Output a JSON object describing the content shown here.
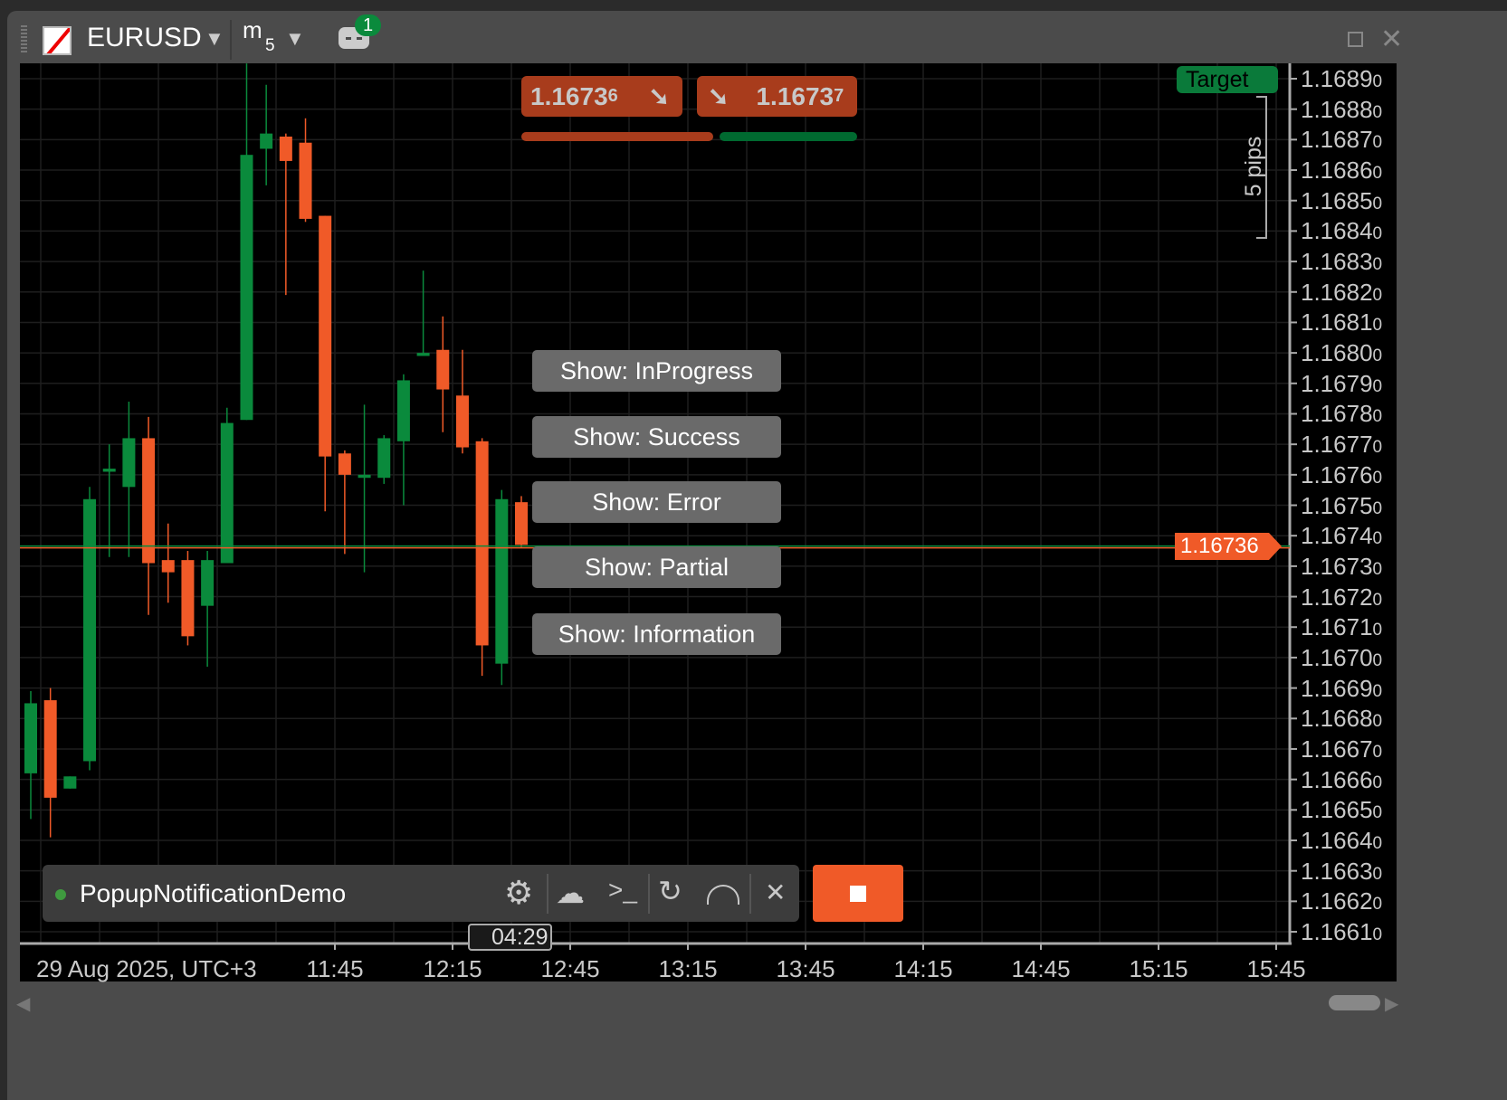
{
  "header": {
    "symbol": "EURUSD",
    "timeframe_letter": "m",
    "timeframe_number": "5",
    "bot_badge_count": "1"
  },
  "quotes": {
    "sell": {
      "main": "1.1673",
      "pip": "6"
    },
    "buy": {
      "main": "1.1673",
      "pip": "7"
    }
  },
  "target_label": "Target",
  "pips_label": "5 pips",
  "current_price": "1.16736",
  "buttons": [
    "Show: InProgress",
    "Show: Success",
    "Show: Error",
    "Show: Partial",
    "Show: Information"
  ],
  "bot": {
    "name": "PopupNotificationDemo",
    "status": "running",
    "timer": "04:29"
  },
  "colors": {
    "bull": "#0a8a3c",
    "bear": "#f05a28",
    "bg": "#000000",
    "grid": "#1e1e1e",
    "quote_box": "#a83c1c"
  },
  "chart_data": {
    "type": "candlestick",
    "symbol": "EURUSD",
    "timeframe": "m5",
    "ylim": [
      1.16605,
      1.169
    ],
    "price_ticks": [
      "1.16890",
      "1.16880",
      "1.16870",
      "1.16860",
      "1.16850",
      "1.16840",
      "1.16830",
      "1.16820",
      "1.16810",
      "1.16800",
      "1.16790",
      "1.16780",
      "1.16770",
      "1.16760",
      "1.16750",
      "1.16740",
      "1.16730",
      "1.16720",
      "1.16710",
      "1.16700",
      "1.16690",
      "1.16680",
      "1.16670",
      "1.16660",
      "1.16650",
      "1.16640",
      "1.16630",
      "1.16620",
      "1.16610"
    ],
    "time_ticks": [
      "29 Aug 2025, UTC+3",
      "11:45",
      "12:15",
      "12:45",
      "13:15",
      "13:45",
      "14:15",
      "14:45",
      "15:15",
      "15:45"
    ],
    "candles": [
      [
        1.16662,
        1.16689,
        1.16647,
        1.16685
      ],
      [
        1.16686,
        1.1669,
        1.16641,
        1.16654
      ],
      [
        1.16657,
        1.16661,
        1.16657,
        1.16661
      ],
      [
        1.16666,
        1.16756,
        1.16663,
        1.16752
      ],
      [
        1.16761,
        1.1677,
        1.16733,
        1.16762
      ],
      [
        1.16756,
        1.16784,
        1.16733,
        1.16772
      ],
      [
        1.16772,
        1.16779,
        1.16714,
        1.16731
      ],
      [
        1.16732,
        1.16744,
        1.16718,
        1.16728
      ],
      [
        1.16732,
        1.16735,
        1.16704,
        1.16707
      ],
      [
        1.16717,
        1.16735,
        1.16697,
        1.16732
      ],
      [
        1.16731,
        1.16782,
        1.16731,
        1.16777
      ],
      [
        1.16778,
        1.16895,
        1.16778,
        1.16865
      ],
      [
        1.16867,
        1.16888,
        1.16855,
        1.16872
      ],
      [
        1.16871,
        1.16872,
        1.16819,
        1.16863
      ],
      [
        1.16869,
        1.16877,
        1.16843,
        1.16844
      ],
      [
        1.16845,
        1.16845,
        1.16748,
        1.16766
      ],
      [
        1.16767,
        1.16768,
        1.16734,
        1.1676
      ],
      [
        1.16759,
        1.16783,
        1.16728,
        1.1676
      ],
      [
        1.16759,
        1.16773,
        1.16757,
        1.16772
      ],
      [
        1.16771,
        1.16793,
        1.1675,
        1.16791
      ],
      [
        1.16799,
        1.16827,
        1.16799,
        1.168
      ],
      [
        1.16801,
        1.16812,
        1.16774,
        1.16788
      ],
      [
        1.16786,
        1.16801,
        1.16767,
        1.16769
      ],
      [
        1.16771,
        1.16772,
        1.16694,
        1.16704
      ],
      [
        1.16698,
        1.16755,
        1.16691,
        1.16752
      ],
      [
        1.16751,
        1.16753,
        1.16736,
        1.16737
      ]
    ]
  }
}
